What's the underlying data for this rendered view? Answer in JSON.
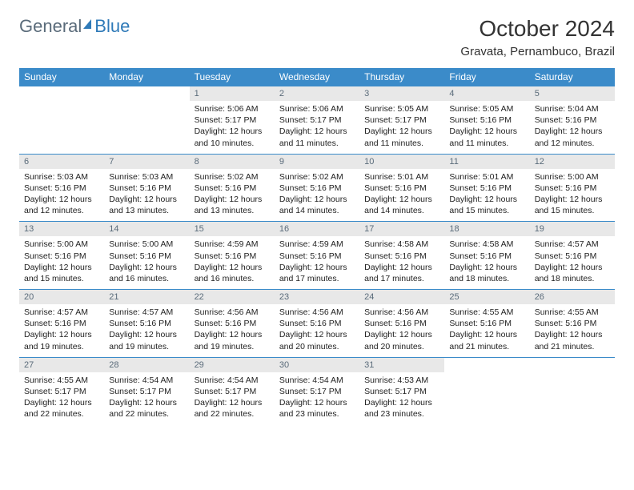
{
  "logo": {
    "text1": "General",
    "text2": "Blue"
  },
  "title": "October 2024",
  "location": "Gravata, Pernambuco, Brazil",
  "day_headers": [
    "Sunday",
    "Monday",
    "Tuesday",
    "Wednesday",
    "Thursday",
    "Friday",
    "Saturday"
  ],
  "colors": {
    "header_bg": "#3b8bc9",
    "header_fg": "#ffffff",
    "daynum_bg": "#e8e8e8",
    "daynum_fg": "#5a6b7a",
    "border": "#3b8bc9",
    "logo_gray": "#5a6b7a",
    "logo_blue": "#2f7ab8"
  },
  "weeks": [
    [
      null,
      null,
      {
        "n": "1",
        "sr": "Sunrise: 5:06 AM",
        "ss": "Sunset: 5:17 PM",
        "d1": "Daylight: 12 hours",
        "d2": "and 10 minutes."
      },
      {
        "n": "2",
        "sr": "Sunrise: 5:06 AM",
        "ss": "Sunset: 5:17 PM",
        "d1": "Daylight: 12 hours",
        "d2": "and 11 minutes."
      },
      {
        "n": "3",
        "sr": "Sunrise: 5:05 AM",
        "ss": "Sunset: 5:17 PM",
        "d1": "Daylight: 12 hours",
        "d2": "and 11 minutes."
      },
      {
        "n": "4",
        "sr": "Sunrise: 5:05 AM",
        "ss": "Sunset: 5:16 PM",
        "d1": "Daylight: 12 hours",
        "d2": "and 11 minutes."
      },
      {
        "n": "5",
        "sr": "Sunrise: 5:04 AM",
        "ss": "Sunset: 5:16 PM",
        "d1": "Daylight: 12 hours",
        "d2": "and 12 minutes."
      }
    ],
    [
      {
        "n": "6",
        "sr": "Sunrise: 5:03 AM",
        "ss": "Sunset: 5:16 PM",
        "d1": "Daylight: 12 hours",
        "d2": "and 12 minutes."
      },
      {
        "n": "7",
        "sr": "Sunrise: 5:03 AM",
        "ss": "Sunset: 5:16 PM",
        "d1": "Daylight: 12 hours",
        "d2": "and 13 minutes."
      },
      {
        "n": "8",
        "sr": "Sunrise: 5:02 AM",
        "ss": "Sunset: 5:16 PM",
        "d1": "Daylight: 12 hours",
        "d2": "and 13 minutes."
      },
      {
        "n": "9",
        "sr": "Sunrise: 5:02 AM",
        "ss": "Sunset: 5:16 PM",
        "d1": "Daylight: 12 hours",
        "d2": "and 14 minutes."
      },
      {
        "n": "10",
        "sr": "Sunrise: 5:01 AM",
        "ss": "Sunset: 5:16 PM",
        "d1": "Daylight: 12 hours",
        "d2": "and 14 minutes."
      },
      {
        "n": "11",
        "sr": "Sunrise: 5:01 AM",
        "ss": "Sunset: 5:16 PM",
        "d1": "Daylight: 12 hours",
        "d2": "and 15 minutes."
      },
      {
        "n": "12",
        "sr": "Sunrise: 5:00 AM",
        "ss": "Sunset: 5:16 PM",
        "d1": "Daylight: 12 hours",
        "d2": "and 15 minutes."
      }
    ],
    [
      {
        "n": "13",
        "sr": "Sunrise: 5:00 AM",
        "ss": "Sunset: 5:16 PM",
        "d1": "Daylight: 12 hours",
        "d2": "and 15 minutes."
      },
      {
        "n": "14",
        "sr": "Sunrise: 5:00 AM",
        "ss": "Sunset: 5:16 PM",
        "d1": "Daylight: 12 hours",
        "d2": "and 16 minutes."
      },
      {
        "n": "15",
        "sr": "Sunrise: 4:59 AM",
        "ss": "Sunset: 5:16 PM",
        "d1": "Daylight: 12 hours",
        "d2": "and 16 minutes."
      },
      {
        "n": "16",
        "sr": "Sunrise: 4:59 AM",
        "ss": "Sunset: 5:16 PM",
        "d1": "Daylight: 12 hours",
        "d2": "and 17 minutes."
      },
      {
        "n": "17",
        "sr": "Sunrise: 4:58 AM",
        "ss": "Sunset: 5:16 PM",
        "d1": "Daylight: 12 hours",
        "d2": "and 17 minutes."
      },
      {
        "n": "18",
        "sr": "Sunrise: 4:58 AM",
        "ss": "Sunset: 5:16 PM",
        "d1": "Daylight: 12 hours",
        "d2": "and 18 minutes."
      },
      {
        "n": "19",
        "sr": "Sunrise: 4:57 AM",
        "ss": "Sunset: 5:16 PM",
        "d1": "Daylight: 12 hours",
        "d2": "and 18 minutes."
      }
    ],
    [
      {
        "n": "20",
        "sr": "Sunrise: 4:57 AM",
        "ss": "Sunset: 5:16 PM",
        "d1": "Daylight: 12 hours",
        "d2": "and 19 minutes."
      },
      {
        "n": "21",
        "sr": "Sunrise: 4:57 AM",
        "ss": "Sunset: 5:16 PM",
        "d1": "Daylight: 12 hours",
        "d2": "and 19 minutes."
      },
      {
        "n": "22",
        "sr": "Sunrise: 4:56 AM",
        "ss": "Sunset: 5:16 PM",
        "d1": "Daylight: 12 hours",
        "d2": "and 19 minutes."
      },
      {
        "n": "23",
        "sr": "Sunrise: 4:56 AM",
        "ss": "Sunset: 5:16 PM",
        "d1": "Daylight: 12 hours",
        "d2": "and 20 minutes."
      },
      {
        "n": "24",
        "sr": "Sunrise: 4:56 AM",
        "ss": "Sunset: 5:16 PM",
        "d1": "Daylight: 12 hours",
        "d2": "and 20 minutes."
      },
      {
        "n": "25",
        "sr": "Sunrise: 4:55 AM",
        "ss": "Sunset: 5:16 PM",
        "d1": "Daylight: 12 hours",
        "d2": "and 21 minutes."
      },
      {
        "n": "26",
        "sr": "Sunrise: 4:55 AM",
        "ss": "Sunset: 5:16 PM",
        "d1": "Daylight: 12 hours",
        "d2": "and 21 minutes."
      }
    ],
    [
      {
        "n": "27",
        "sr": "Sunrise: 4:55 AM",
        "ss": "Sunset: 5:17 PM",
        "d1": "Daylight: 12 hours",
        "d2": "and 22 minutes."
      },
      {
        "n": "28",
        "sr": "Sunrise: 4:54 AM",
        "ss": "Sunset: 5:17 PM",
        "d1": "Daylight: 12 hours",
        "d2": "and 22 minutes."
      },
      {
        "n": "29",
        "sr": "Sunrise: 4:54 AM",
        "ss": "Sunset: 5:17 PM",
        "d1": "Daylight: 12 hours",
        "d2": "and 22 minutes."
      },
      {
        "n": "30",
        "sr": "Sunrise: 4:54 AM",
        "ss": "Sunset: 5:17 PM",
        "d1": "Daylight: 12 hours",
        "d2": "and 23 minutes."
      },
      {
        "n": "31",
        "sr": "Sunrise: 4:53 AM",
        "ss": "Sunset: 5:17 PM",
        "d1": "Daylight: 12 hours",
        "d2": "and 23 minutes."
      },
      null,
      null
    ]
  ]
}
